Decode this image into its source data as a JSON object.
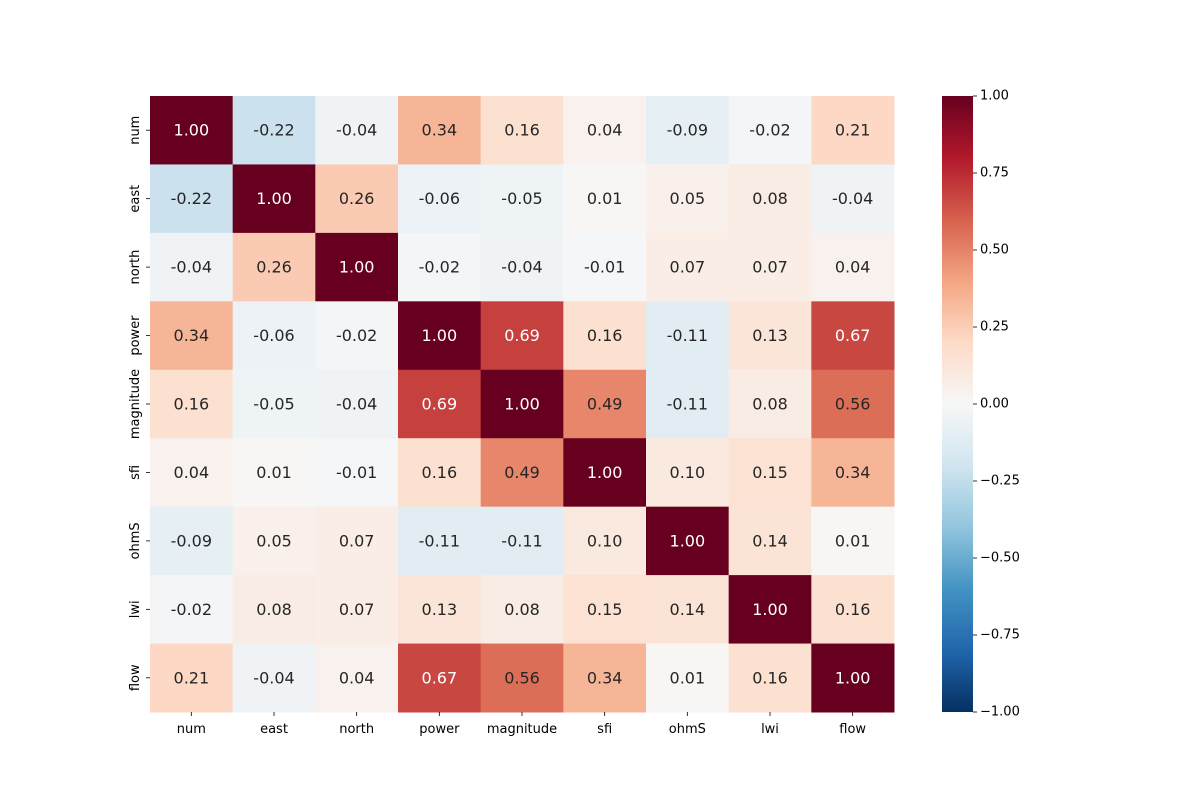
{
  "chart_data": {
    "type": "heatmap",
    "title": "",
    "xlabel": "",
    "ylabel": "",
    "labels": [
      "num",
      "east",
      "north",
      "power",
      "magnitude",
      "sfi",
      "ohmS",
      "lwi",
      "flow"
    ],
    "matrix": [
      [
        1.0,
        -0.22,
        -0.04,
        0.34,
        0.16,
        0.04,
        -0.09,
        -0.02,
        0.21
      ],
      [
        -0.22,
        1.0,
        0.26,
        -0.06,
        -0.05,
        0.01,
        0.05,
        0.08,
        -0.04
      ],
      [
        -0.04,
        0.26,
        1.0,
        -0.02,
        -0.04,
        -0.01,
        0.07,
        0.07,
        0.04
      ],
      [
        0.34,
        -0.06,
        -0.02,
        1.0,
        0.69,
        0.16,
        -0.11,
        0.13,
        0.67
      ],
      [
        0.16,
        -0.05,
        -0.04,
        0.69,
        1.0,
        0.49,
        -0.11,
        0.08,
        0.56
      ],
      [
        0.04,
        0.01,
        -0.01,
        0.16,
        0.49,
        1.0,
        0.1,
        0.15,
        0.34
      ],
      [
        -0.09,
        0.05,
        0.07,
        -0.11,
        -0.11,
        0.1,
        1.0,
        0.14,
        0.01
      ],
      [
        -0.02,
        0.08,
        0.07,
        0.13,
        0.08,
        0.15,
        0.14,
        1.0,
        0.16
      ],
      [
        0.21,
        -0.04,
        0.04,
        0.67,
        0.56,
        0.34,
        0.01,
        0.16,
        1.0
      ]
    ],
    "value_format": "2 decimals",
    "colorbar": {
      "range": [
        -1.0,
        1.0
      ],
      "ticks": [
        1.0,
        0.75,
        0.5,
        0.25,
        0.0,
        -0.25,
        -0.5,
        -0.75,
        -1.0
      ],
      "tick_labels": [
        "1.00",
        "0.75",
        "0.50",
        "0.25",
        "0.00",
        "−0.25",
        "−0.50",
        "−0.75",
        "−1.00"
      ],
      "colormap": "RdBu_r",
      "colors": [
        "#053061",
        "#2166ac",
        "#4393c3",
        "#92c5de",
        "#d1e5f0",
        "#f7f7f7",
        "#fddbc7",
        "#f4a582",
        "#d6604d",
        "#b2182b",
        "#67001f"
      ]
    },
    "grid": false,
    "legend": "colorbar-right"
  }
}
